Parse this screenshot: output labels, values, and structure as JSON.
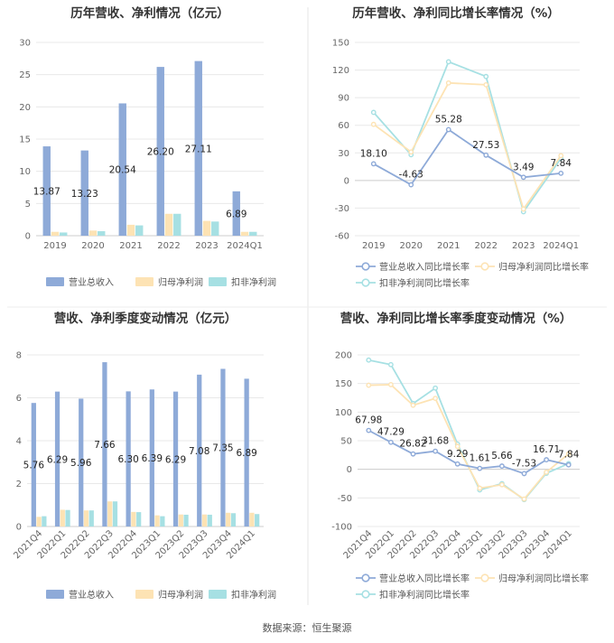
{
  "source_text": "数据来源：恒生聚源",
  "chart_data": [
    {
      "type": "bar",
      "title": "历年营收、净利情况（亿元）",
      "categories": [
        "2019",
        "2020",
        "2021",
        "2022",
        "2023",
        "2024Q1"
      ],
      "series": [
        {
          "name": "营业总收入",
          "color": "#8eaad8",
          "values": [
            13.87,
            13.23,
            20.54,
            26.2,
            27.11,
            6.89
          ],
          "labels": [
            "13.87",
            "13.23",
            "20.54",
            "26.20",
            "27.11",
            "6.89"
          ]
        },
        {
          "name": "归母净利润",
          "color": "#fde3b4",
          "values": [
            0.6,
            0.8,
            1.7,
            3.4,
            2.3,
            0.6
          ]
        },
        {
          "name": "扣非净利润",
          "color": "#a6e0e3",
          "values": [
            0.5,
            0.7,
            1.6,
            3.4,
            2.2,
            0.6
          ]
        }
      ],
      "ylim": [
        0,
        30
      ],
      "yticks": [
        "0",
        "5",
        "10",
        "15",
        "20",
        "25",
        "30"
      ],
      "xlabel": "",
      "ylabel": "",
      "grid": true,
      "legend": "bottom"
    },
    {
      "type": "line",
      "title": "历年营收、净利同比增长率情况（%）",
      "categories": [
        "2019",
        "2020",
        "2021",
        "2022",
        "2023",
        "2024Q1"
      ],
      "series": [
        {
          "name": "营业总收入同比增长率",
          "color": "#8eaad8",
          "values": [
            18.1,
            -4.63,
            55.28,
            27.53,
            3.49,
            7.84
          ],
          "labels": [
            "18.10",
            "-4.63",
            "55.28",
            "27.53",
            "3.49",
            "7.84"
          ]
        },
        {
          "name": "归母净利润同比增长率",
          "color": "#fde3b4",
          "values": [
            61,
            31,
            106,
            104,
            -31,
            27
          ]
        },
        {
          "name": "扣非净利润同比增长率",
          "color": "#a6e0e3",
          "values": [
            74,
            28,
            129,
            113,
            -34,
            24
          ]
        }
      ],
      "ylim": [
        -60,
        150
      ],
      "yticks": [
        "-60",
        "-30",
        "0",
        "30",
        "60",
        "90",
        "120",
        "150"
      ],
      "xlabel": "",
      "ylabel": "",
      "grid": true,
      "legend": "bottom"
    },
    {
      "type": "bar",
      "title": "营收、净利季度变动情况（亿元）",
      "categories": [
        "2021Q4",
        "2022Q1",
        "2022Q2",
        "2022Q3",
        "2022Q4",
        "2023Q1",
        "2023Q2",
        "2023Q3",
        "2023Q4",
        "2024Q1"
      ],
      "series": [
        {
          "name": "营业总收入",
          "color": "#8eaad8",
          "values": [
            5.76,
            6.29,
            5.96,
            7.66,
            6.3,
            6.39,
            6.29,
            7.08,
            7.35,
            6.89
          ],
          "labels": [
            "5.76",
            "6.29",
            "5.96",
            "7.66",
            "6.30",
            "6.39",
            "6.29",
            "7.08",
            "7.35",
            "6.89"
          ]
        },
        {
          "name": "归母净利润",
          "color": "#fde3b4",
          "values": [
            0.45,
            0.78,
            0.75,
            1.17,
            0.68,
            0.52,
            0.56,
            0.56,
            0.64,
            0.64
          ]
        },
        {
          "name": "扣非净利润",
          "color": "#a6e0e3",
          "values": [
            0.48,
            0.77,
            0.75,
            1.17,
            0.67,
            0.48,
            0.55,
            0.55,
            0.62,
            0.58
          ]
        }
      ],
      "ylim": [
        0,
        8
      ],
      "yticks": [
        "0",
        "2",
        "4",
        "6",
        "8"
      ],
      "xlabel": "",
      "ylabel": "",
      "grid": true,
      "legend": "bottom"
    },
    {
      "type": "line",
      "title": "营收、净利同比增长率季度变动情况（%）",
      "categories": [
        "2021Q4",
        "2022Q1",
        "2022Q2",
        "2022Q3",
        "2022Q4",
        "2023Q1",
        "2023Q2",
        "2023Q3",
        "2023Q4",
        "2024Q1"
      ],
      "series": [
        {
          "name": "营业总收入同比增长率",
          "color": "#8eaad8",
          "values": [
            67.98,
            47.29,
            26.82,
            31.68,
            9.29,
            1.61,
            5.66,
            -7.53,
            16.71,
            7.84
          ],
          "labels": [
            "67.98",
            "47.29",
            "26.82",
            "31.68",
            "9.29",
            "1.61",
            "5.66",
            "-7.53",
            "16.71",
            "7.84"
          ]
        },
        {
          "name": "归母净利润同比增长率",
          "color": "#fde3b4",
          "values": [
            147,
            148,
            112,
            124,
            40,
            -33,
            -27,
            -52,
            -5,
            27
          ]
        },
        {
          "name": "扣非净利润同比增长率",
          "color": "#a6e0e3",
          "values": [
            191,
            183,
            115,
            142,
            44,
            -36,
            -25,
            -53,
            -7,
            10
          ]
        }
      ],
      "ylim": [
        -100,
        200
      ],
      "yticks": [
        "-100",
        "-50",
        "0",
        "50",
        "100",
        "150",
        "200"
      ],
      "xlabel": "",
      "ylabel": "",
      "grid": true,
      "legend": "bottom"
    }
  ]
}
